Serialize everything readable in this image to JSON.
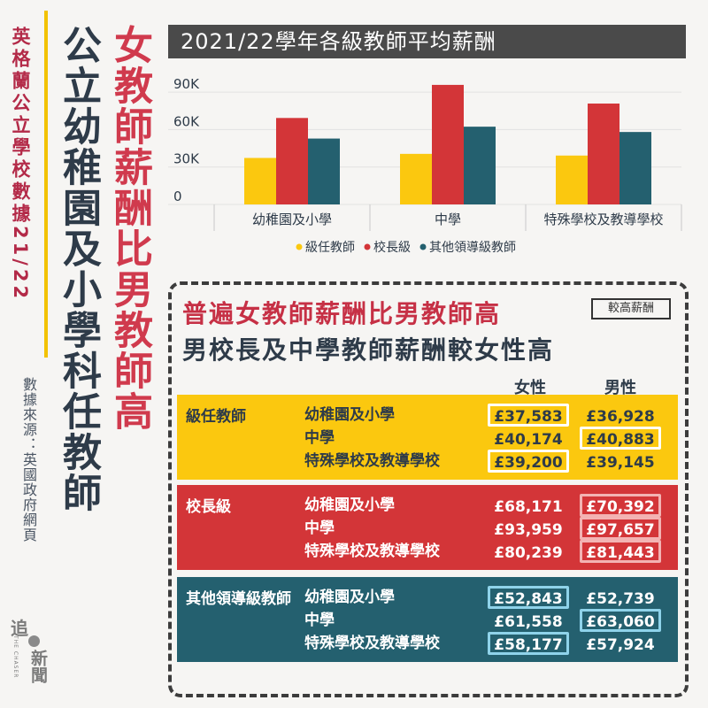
{
  "side_caption": "英格蘭公立學校數據21/22",
  "title_line1": "女教師薪酬比男教師高",
  "title_line2": "公立幼稚園及小學科任教師",
  "source": "數據來源：英國政府網頁",
  "logo": {
    "mark": "追",
    "subtext": "THE CHASER",
    "name": "新聞"
  },
  "chart_data": {
    "type": "bar",
    "title": "2021/22學年各級教師平均薪酬",
    "categories": [
      "幼稚園及小學",
      "中學",
      "特殊學校及教導學校"
    ],
    "series": [
      {
        "name": "級任教師",
        "color": "#fbc80f",
        "values": [
          37255,
          40529,
          39173
        ]
      },
      {
        "name": "校長級",
        "color": "#d33538",
        "values": [
          69282,
          95808,
          80841
        ]
      },
      {
        "name": "其他領導級教師",
        "color": "#24606f",
        "values": [
          52791,
          62309,
          58051
        ]
      }
    ],
    "ylim": [
      0,
      100000
    ],
    "yticks": [
      0,
      30000,
      60000,
      90000
    ],
    "ytick_labels": [
      "0",
      "30K",
      "60K",
      "90K"
    ],
    "grid": true,
    "legend_position": "bottom"
  },
  "summary": {
    "headline1": "普遍女教師薪酬比男教師高",
    "headline2": "男校長及中學教師薪酬較女性高",
    "legend_tag": "較高薪酬",
    "col_female": "女性",
    "col_male": "男性",
    "groups": [
      {
        "title": "級任教師",
        "rows": [
          {
            "school": "幼稚園及小學",
            "female": "£37,583",
            "male": "£36,928",
            "higher": "female"
          },
          {
            "school": "中學",
            "female": "£40,174",
            "male": "£40,883",
            "higher": "male"
          },
          {
            "school": "特殊學校及教導學校",
            "female": "£39,200",
            "male": "£39,145",
            "higher": "female"
          }
        ]
      },
      {
        "title": "校長級",
        "rows": [
          {
            "school": "幼稚園及小學",
            "female": "£68,171",
            "male": "£70,392",
            "higher": "male"
          },
          {
            "school": "中學",
            "female": "£93,959",
            "male": "£97,657",
            "higher": "male"
          },
          {
            "school": "特殊學校及教導學校",
            "female": "£80,239",
            "male": "£81,443",
            "higher": "male"
          }
        ]
      },
      {
        "title": "其他領導級教師",
        "rows": [
          {
            "school": "幼稚園及小學",
            "female": "£52,843",
            "male": "£52,739",
            "higher": "female"
          },
          {
            "school": "中學",
            "female": "£61,558",
            "male": "£63,060",
            "higher": "male"
          },
          {
            "school": "特殊學校及教導學校",
            "female": "£58,177",
            "male": "£57,924",
            "higher": "female"
          }
        ]
      }
    ]
  }
}
